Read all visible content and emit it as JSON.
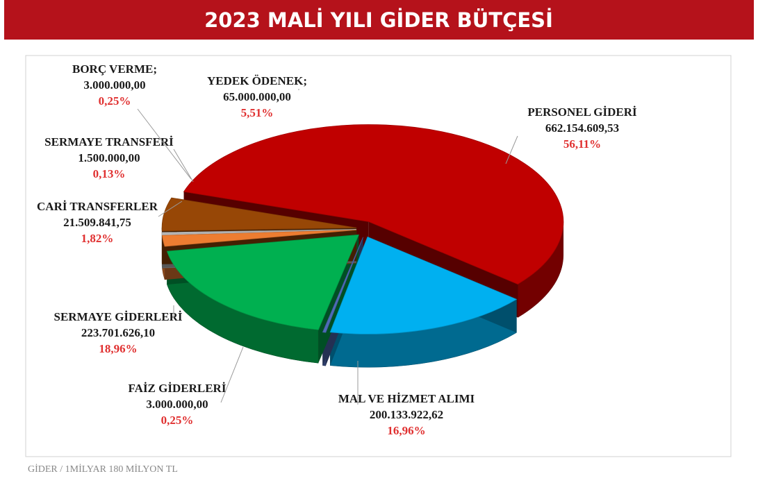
{
  "chart_data": {
    "type": "pie",
    "title": "2023 MALİ YILI GİDER BÜTÇESİ",
    "footer": "GİDER / 1MİLYAR 180 MİLYON TL",
    "categories": [
      "PERSONEL GİDERİ",
      "MAL VE HİZMET ALIMI",
      "FAİZ GİDERLERİ",
      "SERMAYE GİDERLERİ",
      "CARİ TRANSFERLER",
      "SERMAYE TRANSFERİ",
      "BORÇ VERME;",
      "YEDEK ÖDENEK;"
    ],
    "values": [
      662154609.53,
      200133922.62,
      3000000.0,
      223701626.1,
      21509841.75,
      1500000.0,
      3000000.0,
      65000000.0
    ],
    "value_labels": [
      "662.154.609,53",
      "200.133.922,62",
      "3.000.000,00",
      "223.701.626,10",
      "21.509.841,75",
      "1.500.000,00",
      "3.000.000,00",
      "65.000.000,00"
    ],
    "percents": [
      56.11,
      16.96,
      0.25,
      18.96,
      1.82,
      0.13,
      0.25,
      5.51
    ],
    "percent_labels": [
      "56,11%",
      "16,96%",
      "0,25%",
      "18,96%",
      "1,82%",
      "0,13%",
      "0,25%",
      "5,51%"
    ],
    "colors": [
      "#c00000",
      "#00b0f0",
      "#4f6bb8",
      "#00b050",
      "#ed7d31",
      "#d9d9d9",
      "#bfbfbf",
      "#974706"
    ]
  }
}
